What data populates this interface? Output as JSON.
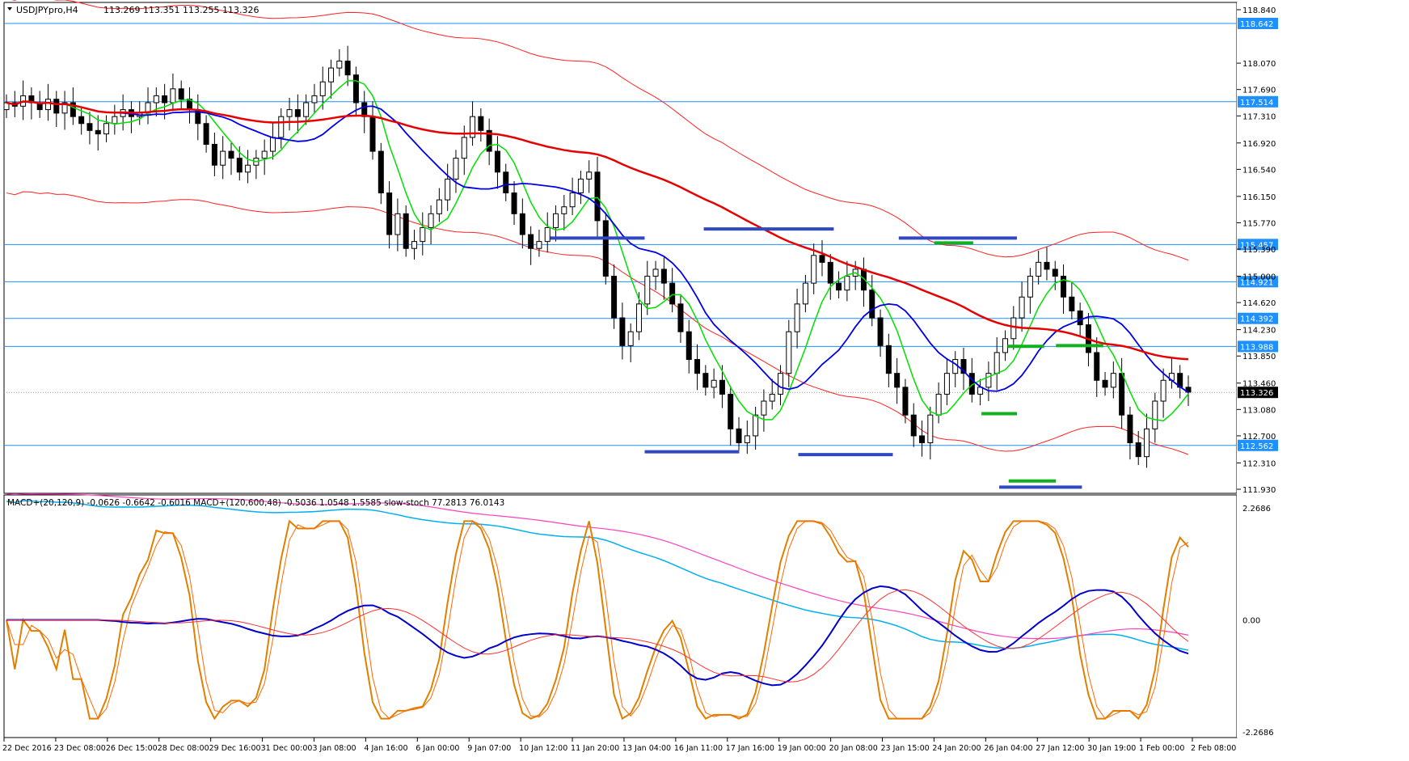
{
  "header": {
    "symbol": "USDJPYpro,H4",
    "ohlc": "113.269 113.351 113.255 113.326"
  },
  "indicator_label": "MACD+(20,120,9) -0.0626 -0.6642 -0.6016  MACD+(120,600,48) -0.5036 1.0548 1.5585  slow-stoch 77.2813 76.0143",
  "colors": {
    "background": "#ffffff",
    "bull": "#ffffff",
    "bear": "#000000",
    "ma_green": "#00e000",
    "ma_blue": "#0000e6",
    "ma_red_thick": "#e60000",
    "envelope_red": "#ff2020",
    "hline": "#1e90ff",
    "support": "#3048c0",
    "support_green": "#10b020",
    "macd_fast": "#0000cc",
    "macd_signal": "#ff3030",
    "macd_slow": "#00b0f0",
    "macd_slow_signal": "#ff40c0",
    "stoch_a": "#e08000",
    "stoch_b": "#ff6600",
    "price_badge": "#1e90ff"
  },
  "chart_data": [
    {
      "type": "candlestick",
      "title": "USDJPYpro,H4",
      "ylim": [
        111.93,
        118.84
      ],
      "y_ticks": [
        118.84,
        118.07,
        117.69,
        117.31,
        116.92,
        116.54,
        116.15,
        115.77,
        115.39,
        115.0,
        114.62,
        114.23,
        113.85,
        113.46,
        113.08,
        112.7,
        112.31,
        111.93
      ],
      "horizontal_levels": [
        {
          "value": 118.642,
          "label": "118.642"
        },
        {
          "value": 117.514,
          "label": "117.514"
        },
        {
          "value": 115.457,
          "label": "115.457"
        },
        {
          "value": 114.921,
          "label": "114.921"
        },
        {
          "value": 114.392,
          "label": "114.392"
        },
        {
          "value": 113.988,
          "label": "113.988"
        },
        {
          "value": 112.562,
          "label": "112.562"
        }
      ],
      "current_price": {
        "value": 113.326,
        "label": "113.326"
      },
      "x_labels": [
        "22 Dec 2016",
        "23 Dec 08:00",
        "26 Dec 15:00",
        "28 Dec 08:00",
        "29 Dec 16:00",
        "31 Dec 00:00",
        "3 Jan 08:00",
        "4 Jan 16:00",
        "6 Jan 00:00",
        "9 Jan 07:00",
        "10 Jan 12:00",
        "11 Jan 20:00",
        "13 Jan 04:00",
        "16 Jan 11:00",
        "17 Jan 16:00",
        "19 Jan 00:00",
        "20 Jan 08:00",
        "23 Jan 15:00",
        "24 Jan 20:00",
        "26 Jan 04:00",
        "27 Jan 12:00",
        "30 Jan 19:00",
        "1 Feb 00:00",
        "2 Feb 08:00"
      ],
      "closes": [
        117.5,
        117.45,
        117.6,
        117.5,
        117.4,
        117.55,
        117.35,
        117.5,
        117.3,
        117.2,
        117.1,
        117.05,
        117.2,
        117.3,
        117.4,
        117.3,
        117.35,
        117.5,
        117.6,
        117.5,
        117.7,
        117.55,
        117.4,
        117.2,
        116.9,
        116.6,
        116.8,
        116.7,
        116.5,
        116.6,
        116.7,
        116.8,
        117.0,
        117.3,
        117.4,
        117.3,
        117.5,
        117.6,
        117.8,
        118.0,
        118.1,
        117.9,
        117.5,
        117.3,
        116.8,
        116.2,
        115.6,
        115.9,
        115.4,
        115.5,
        115.7,
        115.9,
        116.1,
        116.4,
        116.7,
        117.0,
        117.3,
        117.1,
        116.8,
        116.5,
        116.2,
        115.9,
        115.6,
        115.4,
        115.5,
        115.7,
        115.9,
        116.0,
        116.2,
        116.4,
        116.5,
        115.8,
        115.0,
        114.4,
        114.0,
        114.2,
        114.6,
        115.0,
        115.1,
        114.9,
        114.6,
        114.2,
        113.8,
        113.6,
        113.4,
        113.5,
        113.3,
        112.8,
        112.6,
        112.7,
        113.0,
        113.2,
        113.3,
        113.6,
        114.2,
        114.6,
        114.9,
        115.3,
        115.2,
        114.9,
        114.8,
        115.0,
        115.1,
        114.8,
        114.4,
        114.0,
        113.6,
        113.4,
        113.0,
        112.7,
        112.6,
        113.0,
        113.3,
        113.6,
        113.8,
        113.6,
        113.3,
        113.4,
        113.6,
        113.9,
        114.1,
        114.4,
        114.7,
        115.0,
        115.2,
        115.1,
        115.0,
        114.7,
        114.5,
        114.3,
        113.9,
        113.5,
        113.4,
        113.6,
        113.0,
        112.6,
        112.4,
        112.8,
        113.2,
        113.5,
        113.6,
        113.4,
        113.33
      ],
      "macd_axis": {
        "max": 2.2686,
        "zero": 0.0,
        "min": -2.2686,
        "labels": [
          "2.2686",
          "0.00",
          "-2.2686"
        ]
      }
    }
  ]
}
